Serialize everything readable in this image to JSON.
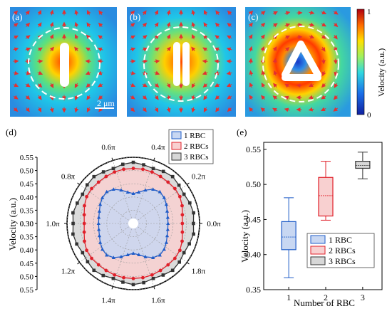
{
  "panels": {
    "a_label": "(a)",
    "b_label": "(b)",
    "c_label": "(c)",
    "d_label": "(d)",
    "e_label": "(e)"
  },
  "scale_bar": {
    "label": "2 μm"
  },
  "colorbar": {
    "label": "Velocity (a.u.)",
    "max_label": "1",
    "min_label": "0"
  },
  "colors": {
    "one_rbc": "#1f5cc8",
    "two_rbcs": "#e0202a",
    "three_rbcs": "#333333",
    "one_rbc_fill": "#c8d7f2",
    "two_rbcs_fill": "#f8d0d0",
    "three_rbcs_fill": "#d7d7d7"
  },
  "chart_data": [
    {
      "type": "polar-line",
      "panel": "d",
      "ylabel": "Velocity (a.u.)",
      "rlim": [
        0.3,
        0.55
      ],
      "r_ticks": [
        "0.30",
        "0.35",
        "0.40",
        "0.45",
        "0.50",
        "0.55"
      ],
      "angle_ticks": [
        "0.0π",
        "0.2π",
        "0.4π",
        "0.6π",
        "0.8π",
        "1.0π",
        "1.2π",
        "1.4π",
        "1.6π",
        "1.8π"
      ],
      "legend": [
        "1 RBC",
        "2 RBCs",
        "3 RBCs"
      ],
      "grid": true,
      "series": [
        {
          "name": "1 RBC",
          "angles_deg": [
            0,
            10,
            20,
            30,
            40,
            50,
            60,
            70,
            80,
            90,
            100,
            110,
            120,
            130,
            140,
            150,
            160,
            170,
            180,
            190,
            200,
            210,
            220,
            230,
            240,
            250,
            260,
            270,
            280,
            290,
            300,
            310,
            320,
            330,
            340,
            350
          ],
          "values": [
            0.431,
            0.432,
            0.436,
            0.444,
            0.452,
            0.456,
            0.449,
            0.434,
            0.42,
            0.413,
            0.42,
            0.434,
            0.449,
            0.456,
            0.452,
            0.444,
            0.436,
            0.432,
            0.431,
            0.432,
            0.436,
            0.444,
            0.452,
            0.456,
            0.449,
            0.434,
            0.42,
            0.413,
            0.42,
            0.434,
            0.449,
            0.456,
            0.452,
            0.444,
            0.436,
            0.432
          ]
        },
        {
          "name": "2 RBCs",
          "angles_deg": [
            0,
            10,
            20,
            30,
            40,
            50,
            60,
            70,
            80,
            90,
            100,
            110,
            120,
            130,
            140,
            150,
            160,
            170,
            180,
            190,
            200,
            210,
            220,
            230,
            240,
            250,
            260,
            270,
            280,
            290,
            300,
            310,
            320,
            330,
            340,
            350
          ],
          "values": [
            0.485,
            0.488,
            0.496,
            0.503,
            0.505,
            0.504,
            0.505,
            0.507,
            0.508,
            0.508,
            0.508,
            0.507,
            0.505,
            0.504,
            0.505,
            0.503,
            0.496,
            0.488,
            0.485,
            0.488,
            0.496,
            0.503,
            0.505,
            0.504,
            0.505,
            0.507,
            0.508,
            0.508,
            0.508,
            0.507,
            0.505,
            0.504,
            0.505,
            0.503,
            0.496,
            0.488
          ]
        },
        {
          "name": "3 RBCs",
          "angles_deg": [
            0,
            10,
            20,
            30,
            40,
            50,
            60,
            70,
            80,
            90,
            100,
            110,
            120,
            130,
            140,
            150,
            160,
            170,
            180,
            190,
            200,
            210,
            220,
            230,
            240,
            250,
            260,
            270,
            280,
            290,
            300,
            310,
            320,
            330,
            340,
            350
          ],
          "values": [
            0.527,
            0.531,
            0.527,
            0.521,
            0.525,
            0.531,
            0.527,
            0.521,
            0.525,
            0.531,
            0.527,
            0.521,
            0.525,
            0.531,
            0.527,
            0.521,
            0.525,
            0.531,
            0.527,
            0.531,
            0.527,
            0.521,
            0.525,
            0.531,
            0.527,
            0.521,
            0.525,
            0.531,
            0.527,
            0.521,
            0.525,
            0.531,
            0.527,
            0.521,
            0.525,
            0.531
          ]
        }
      ]
    },
    {
      "type": "box",
      "panel": "e",
      "xlabel": "Number of RBC",
      "ylabel": "Velocity (a.u.)",
      "categories": [
        "1",
        "2",
        "3"
      ],
      "ylim": [
        0.35,
        0.56
      ],
      "y_ticks": [
        "0.35",
        "0.40",
        "0.45",
        "0.50",
        "0.55"
      ],
      "legend": [
        "1 RBC",
        "2 RBCs",
        "3 RBCs"
      ],
      "series": [
        {
          "name": "1 RBC",
          "min": 0.367,
          "q1": 0.407,
          "median": 0.425,
          "q3": 0.447,
          "max": 0.481
        },
        {
          "name": "2 RBCs",
          "min": 0.449,
          "q1": 0.455,
          "median": 0.484,
          "q3": 0.51,
          "max": 0.533
        },
        {
          "name": "3 RBCs",
          "min": 0.508,
          "q1": 0.523,
          "median": 0.527,
          "q3": 0.533,
          "max": 0.546
        }
      ]
    }
  ]
}
